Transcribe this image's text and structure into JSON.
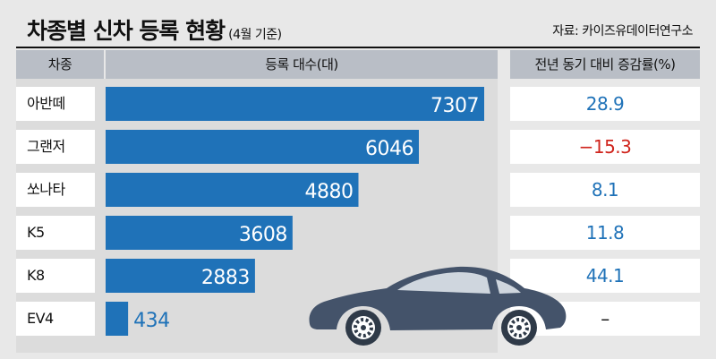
{
  "header": {
    "title": "차종별 신차 등록 현황",
    "subtitle": "(4월 기준)",
    "source": "자료: 카이즈유데이터연구소"
  },
  "columns": {
    "model": "차종",
    "count": "등록 대수(대)",
    "change": "전년 동기 대비 증감률(%)"
  },
  "colors": {
    "bar": "#1f72b8",
    "positive": "#1f72b8",
    "negative": "#d0251d",
    "car_body": "#44536a"
  },
  "chart_data": {
    "type": "bar",
    "orientation": "horizontal",
    "categories": [
      "아반떼",
      "그랜저",
      "쏘나타",
      "K5",
      "K8",
      "EV4"
    ],
    "values": [
      7307,
      6046,
      4880,
      3608,
      2883,
      434
    ],
    "value_labels": [
      "7307",
      "6046",
      "4880",
      "3608",
      "2883",
      "434"
    ],
    "xlim": [
      0,
      7307
    ],
    "changes": [
      "28.9",
      "−15.3",
      "8.1",
      "11.8",
      "44.1",
      "–"
    ],
    "change_sign": [
      "positive",
      "negative",
      "positive",
      "positive",
      "positive",
      "none"
    ]
  }
}
